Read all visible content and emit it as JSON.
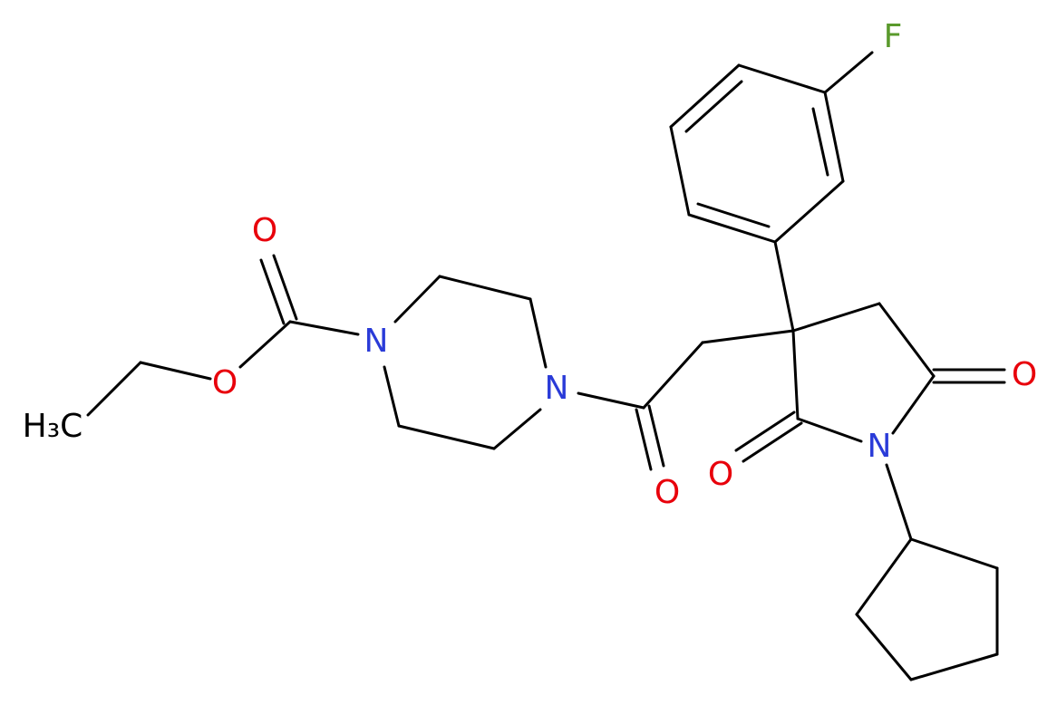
{
  "atoms": {
    "fluorine": "F",
    "carbamate_carbonyl_oxygen": "O",
    "ester_oxygen": "O",
    "piperazine_n1": "N",
    "piperazine_n4": "N",
    "amide_oxygen": "O",
    "imide_nitrogen": "N",
    "imide_oxygen_right": "O",
    "imide_oxygen_left": "O",
    "methyl": "H₃C"
  }
}
